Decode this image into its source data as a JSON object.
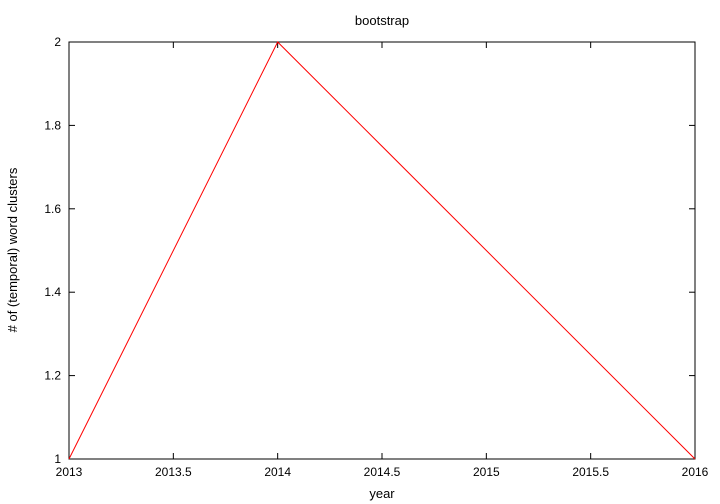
{
  "chart_data": {
    "type": "line",
    "title": "bootstrap",
    "xlabel": "year",
    "ylabel": "# of (temporal) word clusters",
    "xlim": [
      2013,
      2016
    ],
    "ylim": [
      1,
      2
    ],
    "x_ticks": [
      "2013",
      "2013.5",
      "2014",
      "2014.5",
      "2015",
      "2015.5",
      "2016"
    ],
    "y_ticks": [
      "1",
      "1.2",
      "1.4",
      "1.6",
      "1.8",
      "2"
    ],
    "grid": false,
    "series": [
      {
        "color": "#ff0000",
        "x": [
          2013,
          2014,
          2016
        ],
        "y": [
          1,
          2,
          1
        ]
      }
    ]
  }
}
